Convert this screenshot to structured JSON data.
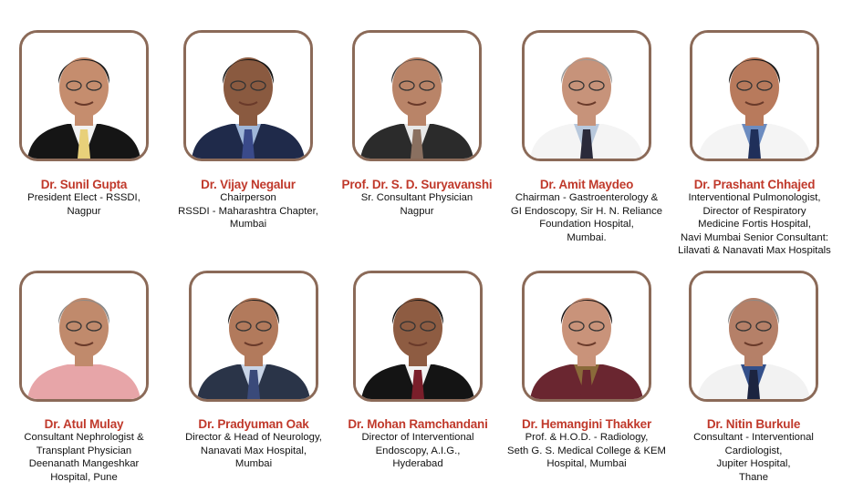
{
  "speakers": [
    {
      "name": "Dr. Sunil Gupta",
      "lines": [
        "President Elect - RSSDI,",
        "Nagpur"
      ],
      "look": {
        "hair": "#1b1b1b",
        "skin": "#c58d6e",
        "suit": "#151515",
        "shirt": "#f2f2f2",
        "tie": "#e8d07a"
      }
    },
    {
      "name": "Dr. Vijay Negalur",
      "lines": [
        "Chairperson",
        "RSSDI - Maharashtra Chapter,",
        "Mumbai"
      ],
      "look": {
        "hair": "#151515",
        "skin": "#8a5a40",
        "suit": "#1f2a4a",
        "shirt": "#9fb6d8",
        "tie": "#3a4a8a"
      }
    },
    {
      "name": "Prof. Dr. S. D. Suryavanshi",
      "lines": [
        "Sr. Consultant Physician",
        "Nagpur"
      ],
      "look": {
        "hair": "#3a3a3a",
        "skin": "#b98468",
        "suit": "#2b2b2b",
        "shirt": "#e8e8e8",
        "tie": "#8a7060"
      }
    },
    {
      "name": "Dr. Amit Maydeo",
      "lines": [
        "Chairman - Gastroenterology &",
        "GI Endoscopy, Sir H. N. Reliance",
        "Foundation Hospital,",
        "Mumbai."
      ],
      "look": {
        "hair": "#9a9a9a",
        "skin": "#c7937a",
        "suit": "#f4f4f4",
        "shirt": "#b8c8dc",
        "tie": "#2a2a3a"
      }
    },
    {
      "name": "Dr. Prashant Chhajed",
      "lines": [
        "Interventional Pulmonologist,",
        "Director of Respiratory",
        "Medicine Fortis Hospital,",
        "Navi Mumbai Senior Consultant:",
        "Lilavati & Nanavati Max Hospitals"
      ],
      "look": {
        "hair": "#161616",
        "skin": "#b87a5c",
        "suit": "#f4f4f4",
        "shirt": "#6c8cc0",
        "tie": "#1f2f5a"
      }
    },
    {
      "name": "Dr. Atul Mulay",
      "lines": [
        "Consultant Nephrologist &",
        "Transplant Physician",
        "Deenanath Mangeshkar",
        "Hospital, Pune"
      ],
      "look": {
        "hair": "#8a8a8a",
        "skin": "#c08a6c",
        "suit": "#e7a5a8",
        "shirt": "#e7a5a8",
        "tie": "#e7a5a8"
      }
    },
    {
      "name": "Dr. Pradyuman Oak",
      "lines": [
        "Director & Head of Neurology,",
        "Nanavati Max Hospital,",
        "Mumbai"
      ],
      "look": {
        "hair": "#1e1e1e",
        "skin": "#b27a5c",
        "suit": "#2a3448",
        "shirt": "#c8d4e6",
        "tie": "#3a4a7a"
      }
    },
    {
      "name": "Dr. Mohan Ramchandani",
      "lines": [
        "Director of Interventional",
        "Endoscopy, A.I.G.,",
        "Hyderabad"
      ],
      "look": {
        "hair": "#141414",
        "skin": "#8e5c42",
        "suit": "#141414",
        "shirt": "#f2f2f2",
        "tie": "#7a1e2a"
      }
    },
    {
      "name": "Dr. Hemangini Thakker",
      "lines": [
        "Prof. & H.O.D. - Radiology,",
        "Seth G. S. Medical College &  KEM",
        "Hospital, Mumbai"
      ],
      "look": {
        "hair": "#181212",
        "skin": "#c9937a",
        "suit": "#6a2630",
        "shirt": "#8a6a3a",
        "tie": "#6a2630"
      }
    },
    {
      "name": "Dr. Nitin Burkule",
      "lines": [
        "Consultant - Interventional",
        "Cardiologist,",
        "Jupiter Hospital,",
        "Thane"
      ],
      "look": {
        "hair": "#8a8a8a",
        "skin": "#b58068",
        "suit": "#f2f2f2",
        "shirt": "#34508a",
        "tie": "#1c2440"
      }
    }
  ],
  "colors": {
    "frame_border": "#8b6a58",
    "name_text": "#c0392b"
  }
}
